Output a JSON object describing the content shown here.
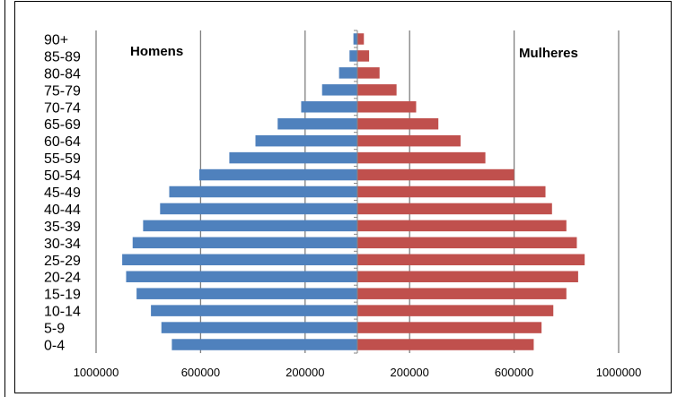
{
  "chart_data": {
    "type": "bar",
    "orientation": "horizontal",
    "layout": "population-pyramid",
    "categories": [
      "0-4",
      "5-9",
      "10-14",
      "15-19",
      "20-24",
      "25-29",
      "30-34",
      "35-39",
      "40-44",
      "45-49",
      "50-54",
      "55-59",
      "60-64",
      "65-69",
      "70-74",
      "75-79",
      "80-84",
      "85-89",
      "90+"
    ],
    "series": [
      {
        "name": "Homens",
        "side": "left",
        "color": "#4F81BD",
        "values": [
          710000,
          750000,
          790000,
          845000,
          885000,
          900000,
          860000,
          820000,
          755000,
          720000,
          605000,
          490000,
          390000,
          305000,
          215000,
          135000,
          70000,
          30000,
          15000
        ]
      },
      {
        "name": "Mulheres",
        "side": "right",
        "color": "#C0504D",
        "values": [
          675000,
          705000,
          750000,
          800000,
          845000,
          870000,
          840000,
          800000,
          745000,
          720000,
          600000,
          490000,
          395000,
          310000,
          225000,
          150000,
          85000,
          45000,
          25000
        ]
      }
    ],
    "xlim": [
      -1000000,
      1000000
    ],
    "xticks": [
      -1000000,
      -600000,
      -200000,
      200000,
      600000,
      1000000
    ],
    "xtick_labels": [
      "1000000",
      "600000",
      "200000",
      "200000",
      "600000",
      "1000000"
    ],
    "title": "",
    "xlabel": "",
    "ylabel": "",
    "grid": "vertical",
    "legend": "none",
    "annotations": [
      "Homens",
      "Mulheres"
    ]
  }
}
